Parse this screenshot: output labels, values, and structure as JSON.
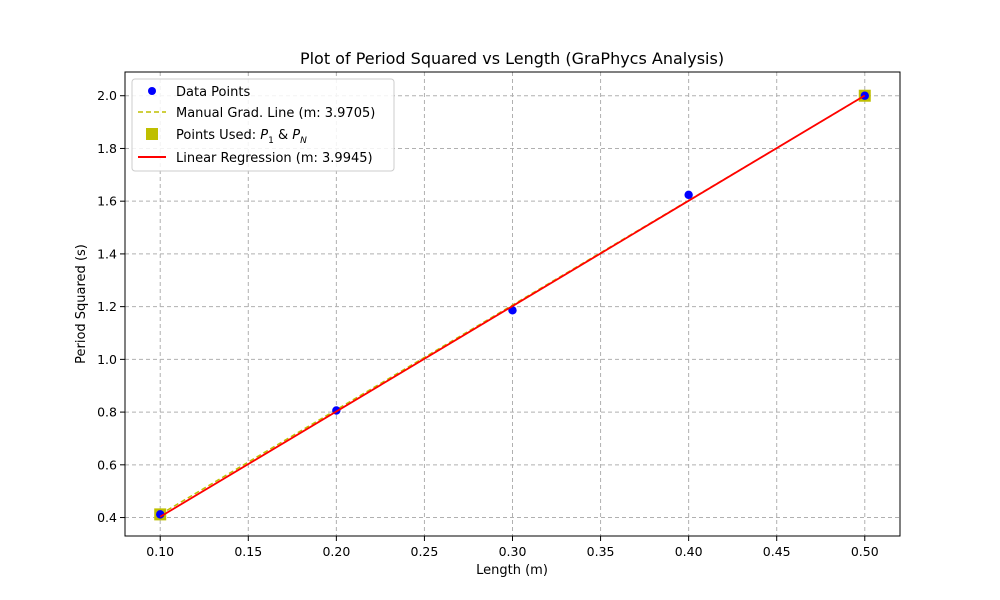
{
  "chart_data": {
    "type": "line",
    "title": "Plot of Period Squared vs Length (GraPhycs Analysis)",
    "xlabel": "Length (m)",
    "ylabel": "Period Squared (s)",
    "xlim": [
      0.08,
      0.52
    ],
    "ylim": [
      0.33,
      2.09
    ],
    "grid": true,
    "legend_position": "top-left",
    "x_ticks": [
      "0.10",
      "0.15",
      "0.20",
      "0.25",
      "0.30",
      "0.35",
      "0.40",
      "0.45",
      "0.50"
    ],
    "y_ticks": [
      "0.4",
      "0.6",
      "0.8",
      "1.0",
      "1.2",
      "1.4",
      "1.6",
      "1.8",
      "2.0"
    ],
    "series": [
      {
        "name": "Data Points",
        "kind": "scatter",
        "color": "#0000ff",
        "x": [
          0.1,
          0.2,
          0.3,
          0.4,
          0.5
        ],
        "y": [
          0.412,
          0.806,
          1.186,
          1.624,
          2.0
        ]
      },
      {
        "name": "Manual Grad. Line (m: 3.9705)",
        "kind": "dashed-line",
        "color": "#bfbf00",
        "x": [
          0.1,
          0.5
        ],
        "y": [
          0.412,
          2.0
        ]
      },
      {
        "name_prefix": "Points Used: ",
        "name_mid": " & ",
        "p1": "P",
        "p1_sub": "1",
        "pn": "P",
        "pn_sub": "N",
        "kind": "square-markers",
        "color": "#bfbf00",
        "x": [
          0.1,
          0.5
        ],
        "y": [
          0.412,
          2.0
        ]
      },
      {
        "name": "Linear Regression (m: 3.9945)",
        "kind": "line",
        "color": "#ff0000",
        "x": [
          0.1,
          0.5
        ],
        "y": [
          0.403,
          2.001
        ]
      }
    ]
  }
}
